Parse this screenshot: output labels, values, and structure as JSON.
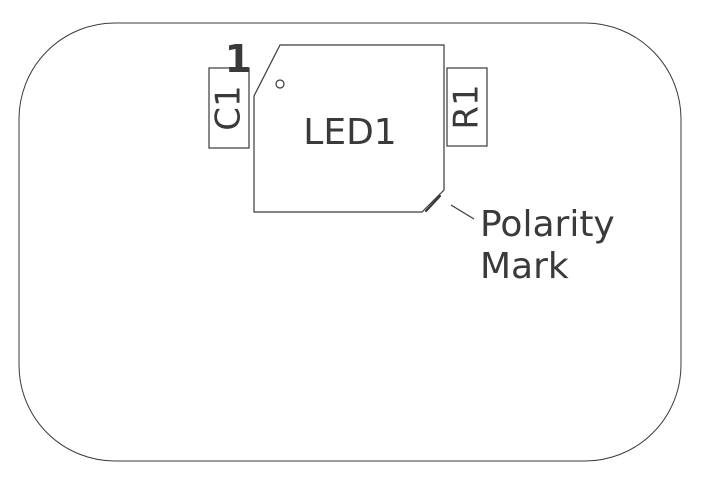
{
  "labels": {
    "c1": "C1",
    "r1": "R1",
    "led1": "LED1",
    "pin1": "1",
    "polarity_line1": "Polarity",
    "polarity_line2": "Mark"
  }
}
